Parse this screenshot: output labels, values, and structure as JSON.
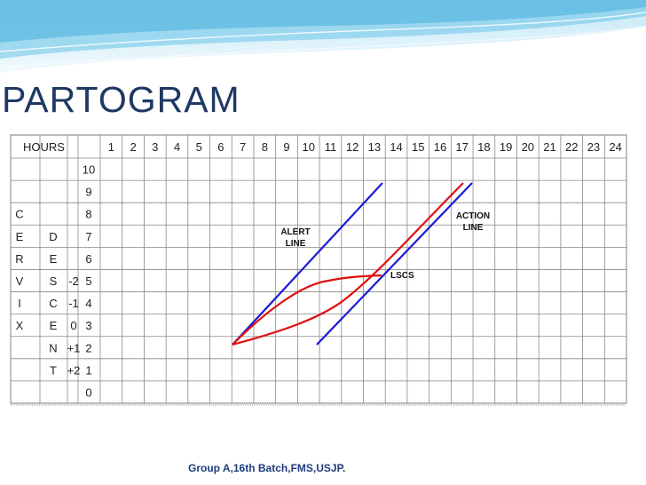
{
  "slide": {
    "title": "PARTOGRAM",
    "footer": "Group A,16th Batch,FMS,USJP."
  },
  "table": {
    "header_label": "HOURS",
    "hours": [
      "1",
      "2",
      "3",
      "4",
      "5",
      "6",
      "7",
      "8",
      "9",
      "10",
      "11",
      "12",
      "13",
      "14",
      "15",
      "16",
      "17",
      "18",
      "19",
      "20",
      "21",
      "22",
      "23",
      "24"
    ],
    "cervix_label": [
      "C",
      "E",
      "R",
      "V",
      "I",
      "X"
    ],
    "descent_label": [
      "D",
      "E",
      "S",
      "C",
      "E",
      "N",
      "T"
    ],
    "station_values": [
      "-2",
      "-1",
      "0",
      "+1",
      "+2"
    ],
    "dilatation_scale": [
      "10",
      "9",
      "8",
      "7",
      "6",
      "5",
      "4",
      "3",
      "2",
      "1",
      "0"
    ]
  },
  "annotations": {
    "alert_line": [
      "ALERT",
      "LINE"
    ],
    "action_line": [
      "ACTION",
      "LINE"
    ],
    "lscs": "LSCS"
  },
  "colors": {
    "title": "#1f3864",
    "footer": "#1f3d7a",
    "reference_lines": "#1a1ad6",
    "progress_curves": "#e01010",
    "grid": "#888888",
    "banner": "#5ab8e0"
  }
}
